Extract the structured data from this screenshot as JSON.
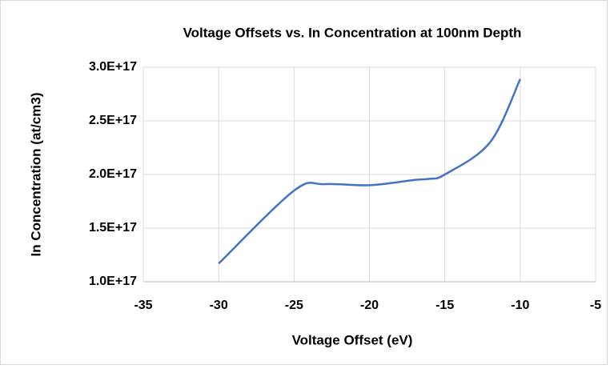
{
  "chart_data": {
    "type": "line",
    "title": "Voltage Offsets vs. In Concentration at 100nm Depth",
    "x_label": "Voltage Offset (eV)",
    "y_label": "In Concentration (at/cm3)",
    "series": [
      {
        "name": "In Concentration",
        "color": "#4472c4",
        "x": [
          -30,
          -25,
          -23,
          -20,
          -17,
          -16,
          -15,
          -12,
          -10
        ],
        "values": [
          1.17e+17,
          1.85e+17,
          1.91e+17,
          1.9e+17,
          1.95e+17,
          1.96e+17,
          2e+17,
          2.3e+17,
          2.89e+17
        ]
      }
    ],
    "xlim": [
      -35,
      -5
    ],
    "xticks": [
      -35,
      -30,
      -25,
      -20,
      -15,
      -10,
      -5
    ],
    "ylim": [
      1e+17,
      3e+17
    ],
    "yticks": [
      {
        "value": 1e+17,
        "label": "1.0E+17"
      },
      {
        "value": 1.5e+17,
        "label": "1.5E+17"
      },
      {
        "value": 2e+17,
        "label": "2.0E+17"
      },
      {
        "value": 2.5e+17,
        "label": "2.5E+17"
      },
      {
        "value": 3e+17,
        "label": "3.0E+17"
      }
    ],
    "grid": true
  }
}
